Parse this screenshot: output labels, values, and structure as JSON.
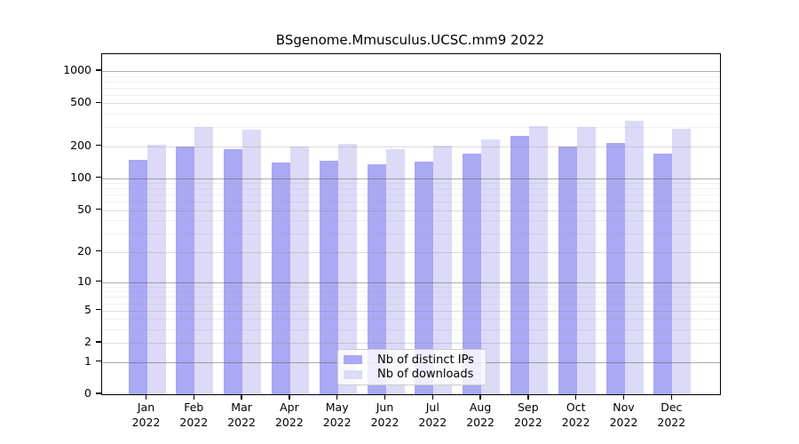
{
  "figure": {
    "title": "BSgenome.Mmusculus.UCSC.mm9 2022"
  },
  "legend": {
    "items": [
      {
        "label": "Nb of distinct IPs",
        "color": "#a9a9f4"
      },
      {
        "label": "Nb of downloads",
        "color": "#dbdbf8"
      }
    ]
  },
  "chart_data": {
    "type": "bar",
    "title": "BSgenome.Mmusculus.UCSC.mm9 2022",
    "categories": [
      "Jan",
      "Feb",
      "Mar",
      "Apr",
      "May",
      "Jun",
      "Jul",
      "Aug",
      "Sep",
      "Oct",
      "Nov",
      "Dec"
    ],
    "year": "2022",
    "series": [
      {
        "name": "Nb of distinct IPs",
        "color": "#a9a9f4",
        "values": [
          150,
          197,
          188,
          140,
          146,
          135,
          144,
          170,
          251,
          197,
          214,
          172
        ]
      },
      {
        "name": "Nb of downloads",
        "color": "#dbdbf8",
        "values": [
          207,
          303,
          285,
          198,
          210,
          188,
          202,
          233,
          310,
          300,
          345,
          290
        ]
      }
    ],
    "yscale": "log10(value+1), 0 at baseline",
    "y_ticks": [
      0,
      1,
      2,
      5,
      10,
      20,
      50,
      100,
      200,
      500,
      1000
    ],
    "ylim": [
      0,
      1435
    ],
    "grid": "horizontal major + log-minor gridlines drawn over bars",
    "legend_position": "lower center inside axes",
    "xlabel": "",
    "ylabel": ""
  }
}
